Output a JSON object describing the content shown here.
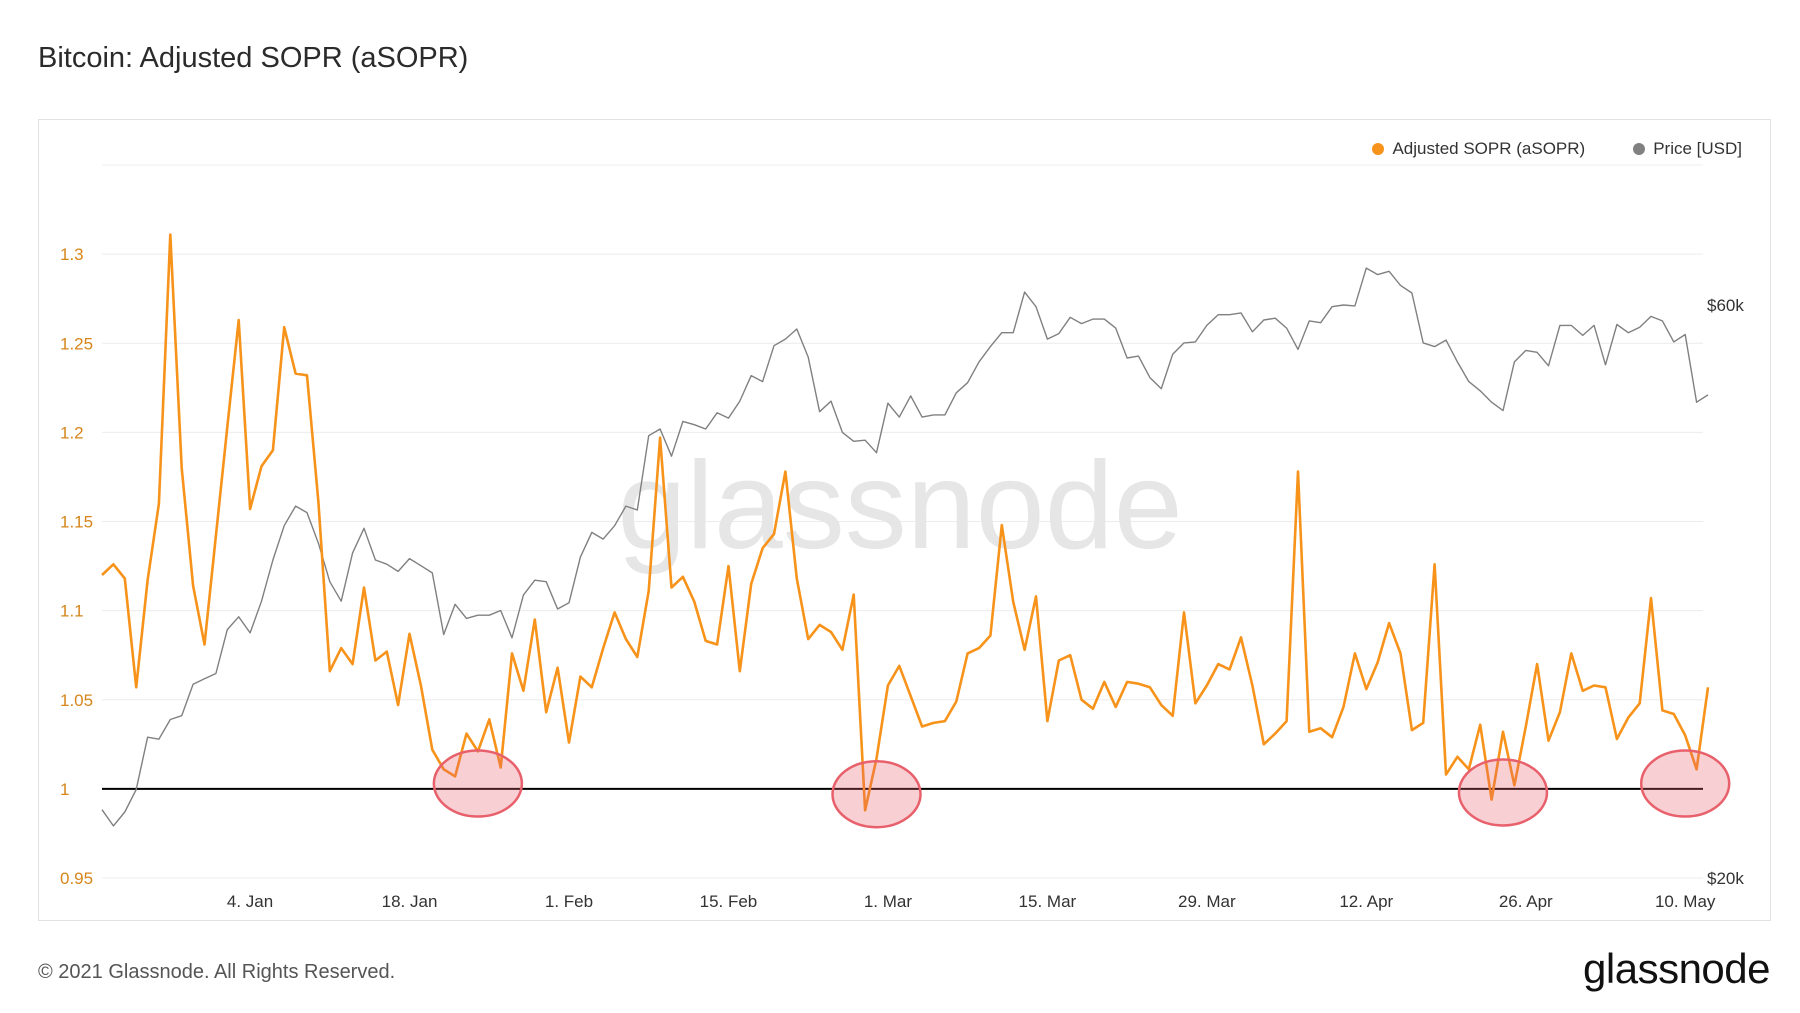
{
  "header": {
    "title": "Bitcoin: Adjusted SOPR (aSOPR)"
  },
  "footer": {
    "copyright": "© 2021 Glassnode. All Rights Reserved.",
    "logo": "glassnode"
  },
  "watermark": "glassnode",
  "colors": {
    "asopr": "#f7931a",
    "price": "#808080",
    "baseline": "#000000",
    "highlight": "#e8606b",
    "grid": "#ececec",
    "left_axis_text": "#d6861c"
  },
  "legend": [
    {
      "label": "Adjusted SOPR (aSOPR)",
      "color": "#f7931a"
    },
    {
      "label": "Price [USD]",
      "color": "#808080"
    }
  ],
  "chart_data": {
    "type": "line",
    "x_ticks": [
      "4. Jan",
      "18. Jan",
      "1. Feb",
      "15. Feb",
      "1. Mar",
      "15. Mar",
      "29. Mar",
      "12. Apr",
      "26. Apr",
      "10. May"
    ],
    "y_left": {
      "ticks": [
        "0.95",
        "1",
        "1.05",
        "1.1",
        "1.15",
        "1.2",
        "1.25",
        "1.3"
      ],
      "range": [
        0.95,
        1.35
      ]
    },
    "y_right": {
      "ticks": [
        "$20k",
        "$60k"
      ],
      "scale": "log"
    },
    "baseline": 1.0,
    "x_start": "2020-12-22",
    "series": [
      {
        "name": "Adjusted SOPR (aSOPR)",
        "axis": "left",
        "values": [
          1.12,
          1.126,
          1.118,
          1.057,
          1.117,
          1.16,
          1.311,
          1.18,
          1.114,
          1.081,
          1.142,
          1.203,
          1.263,
          1.157,
          1.181,
          1.19,
          1.259,
          1.233,
          1.232,
          1.161,
          1.066,
          1.079,
          1.07,
          1.113,
          1.072,
          1.077,
          1.047,
          1.087,
          1.058,
          1.022,
          1.011,
          1.007,
          1.031,
          1.021,
          1.039,
          1.012,
          1.076,
          1.055,
          1.095,
          1.043,
          1.068,
          1.026,
          1.063,
          1.057,
          1.079,
          1.099,
          1.084,
          1.074,
          1.111,
          1.197,
          1.113,
          1.119,
          1.105,
          1.083,
          1.081,
          1.125,
          1.066,
          1.115,
          1.135,
          1.143,
          1.178,
          1.118,
          1.084,
          1.092,
          1.088,
          1.078,
          1.109,
          0.988,
          1.017,
          1.058,
          1.069,
          1.052,
          1.035,
          1.037,
          1.038,
          1.049,
          1.076,
          1.079,
          1.086,
          1.148,
          1.105,
          1.078,
          1.108,
          1.038,
          1.072,
          1.075,
          1.05,
          1.045,
          1.06,
          1.046,
          1.06,
          1.059,
          1.057,
          1.047,
          1.041,
          1.099,
          1.048,
          1.058,
          1.07,
          1.067,
          1.085,
          1.058,
          1.025,
          1.031,
          1.038,
          1.178,
          1.032,
          1.034,
          1.029,
          1.046,
          1.076,
          1.056,
          1.071,
          1.093,
          1.076,
          1.033,
          1.037,
          1.126,
          1.008,
          1.018,
          1.011,
          1.036,
          0.994,
          1.032,
          1.002,
          1.035,
          1.07,
          1.027,
          1.043,
          1.076,
          1.055,
          1.058,
          1.057,
          1.028,
          1.04,
          1.048,
          1.107,
          1.044,
          1.042,
          1.03,
          1.011,
          1.057
        ]
      },
      {
        "name": "Price [USD]",
        "axis": "right",
        "values": [
          22800,
          22100,
          22700,
          23700,
          26200,
          26100,
          27100,
          27300,
          29000,
          29300,
          29600,
          32200,
          33000,
          32000,
          34000,
          36800,
          39300,
          40800,
          40300,
          38000,
          35300,
          34000,
          37300,
          39100,
          36800,
          36500,
          36000,
          36900,
          36400,
          35900,
          31900,
          33800,
          32900,
          33100,
          33100,
          33400,
          31700,
          34400,
          35400,
          35300,
          33500,
          33900,
          37000,
          38800,
          38300,
          39300,
          40800,
          40500,
          46700,
          47300,
          44900,
          48000,
          47700,
          47300,
          48800,
          48300,
          49900,
          52400,
          51800,
          55500,
          56200,
          57300,
          54300,
          48900,
          49900,
          47000,
          46200,
          46300,
          45200,
          49700,
          48400,
          50400,
          48400,
          48600,
          48600,
          50700,
          51700,
          53800,
          55400,
          56900,
          56900,
          61500,
          59800,
          56200,
          56800,
          58600,
          57900,
          58400,
          58400,
          57400,
          54200,
          54400,
          52200,
          51100,
          54600,
          55800,
          55900,
          57700,
          58900,
          58900,
          59100,
          57000,
          58300,
          58500,
          57400,
          55100,
          58200,
          58000,
          59800,
          60000,
          59900,
          64400,
          63600,
          64000,
          62300,
          61400,
          55800,
          55400,
          56100,
          53800,
          51800,
          50900,
          49800,
          49000,
          53800,
          55000,
          54800,
          53400,
          57700,
          57700,
          56600,
          57700,
          53500,
          57800,
          56900,
          57500,
          58700,
          58200,
          55900,
          56700,
          49800,
          50500
        ]
      }
    ],
    "highlight_circles": [
      {
        "x": "2021-01-24",
        "y": 1.003
      },
      {
        "x": "2021-02-28",
        "y": 0.997
      },
      {
        "x": "2021-04-24",
        "y": 0.998
      },
      {
        "x": "2021-05-10",
        "y": 1.003
      }
    ]
  }
}
